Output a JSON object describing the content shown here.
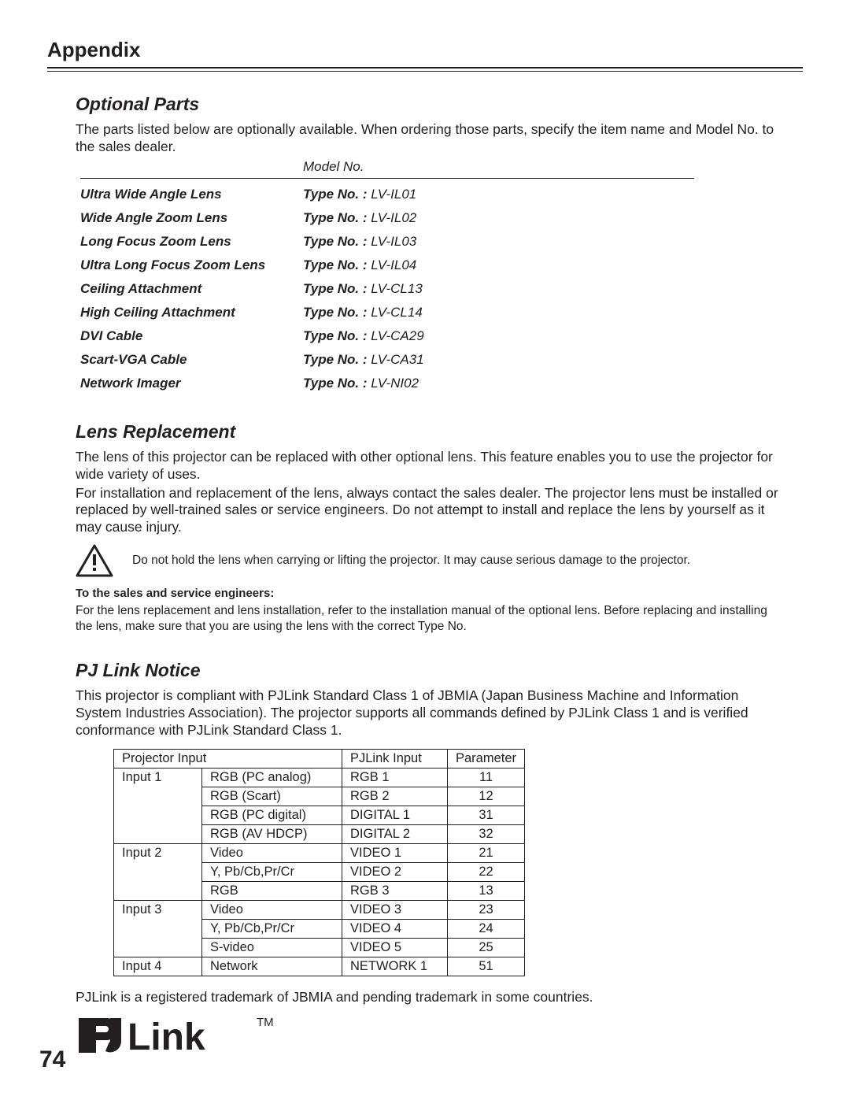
{
  "header": {
    "title": "Appendix"
  },
  "optional_parts": {
    "title": "Optional Parts",
    "intro": "The parts listed below are optionally available. When ordering those parts, specify the item name and Model No. to the sales dealer.",
    "model_header": "Model No.",
    "type_label": "Type No. : ",
    "rows": [
      {
        "name": "Ultra Wide Angle Lens",
        "val": "LV-IL01"
      },
      {
        "name": "Wide Angle Zoom Lens",
        "val": "LV-IL02"
      },
      {
        "name": "Long Focus Zoom Lens",
        "val": "LV-IL03"
      },
      {
        "name": "Ultra Long Focus Zoom Lens",
        "val": "LV-IL04"
      },
      {
        "name": "Ceiling Attachment",
        "val": "LV-CL13"
      },
      {
        "name": "High Ceiling Attachment",
        "val": "LV-CL14"
      },
      {
        "name": "DVI Cable",
        "val": "LV-CA29"
      },
      {
        "name": "Scart-VGA Cable",
        "val": "LV-CA31"
      },
      {
        "name": "Network Imager",
        "val": "LV-NI02"
      }
    ]
  },
  "lens": {
    "title": "Lens Replacement",
    "p1": "The lens of this projector can be replaced with other optional lens. This feature enables you to use the projector for wide variety of uses.",
    "p2": "For installation and replacement of the lens, always contact the sales dealer. The projector lens must be installed or replaced by well-trained sales or service engineers. Do not attempt to install and replace the lens by yourself as it may cause injury.",
    "warn": "Do not hold the lens when carrying or lifting the projector. It may cause serious damage to the projector.",
    "sub_bold": "To the sales and service engineers:",
    "sub_text": "For the lens replacement and lens installation, refer to the installation manual of the optional lens. Before replacing and installing the lens, make sure that you are using the lens with the correct Type No."
  },
  "pjlink": {
    "title": "PJ Link Notice",
    "intro": "This projector is compliant with PJLink Standard Class 1 of JBMIA (Japan Business Machine and Information System Industries Association). The projector supports all commands defined by PJLink Class 1 and is verified conformance with PJLink Standard Class 1.",
    "headers": {
      "a": "Projector Input",
      "c": "PJLink Input",
      "d": "Parameter"
    },
    "rows": [
      [
        "Input 1",
        "RGB (PC analog)",
        "RGB 1",
        "11"
      ],
      [
        "",
        "RGB (Scart)",
        "RGB 2",
        "12"
      ],
      [
        "",
        "RGB (PC digital)",
        "DIGITAL 1",
        "31"
      ],
      [
        "",
        "RGB (AV HDCP)",
        "DIGITAL 2",
        "32"
      ],
      [
        "Input 2",
        "Video",
        "VIDEO 1",
        "21"
      ],
      [
        "",
        "Y, Pb/Cb,Pr/Cr",
        "VIDEO 2",
        "22"
      ],
      [
        "",
        "RGB",
        "RGB 3",
        "13"
      ],
      [
        "Input 3",
        "Video",
        "VIDEO 3",
        "23"
      ],
      [
        "",
        "Y, Pb/Cb,Pr/Cr",
        "VIDEO 4",
        "24"
      ],
      [
        "",
        "S-video",
        "VIDEO 5",
        "25"
      ],
      [
        "Input 4",
        "Network",
        "NETWORK 1",
        "51"
      ]
    ],
    "foot": "PJLink is a registered trademark of JBMIA and pending trademark in some countries.",
    "logo_text": "PJLink",
    "logo_tm": "™"
  },
  "page_number": "74",
  "colors": {
    "text": "#231f20",
    "bg": "#ffffff"
  }
}
